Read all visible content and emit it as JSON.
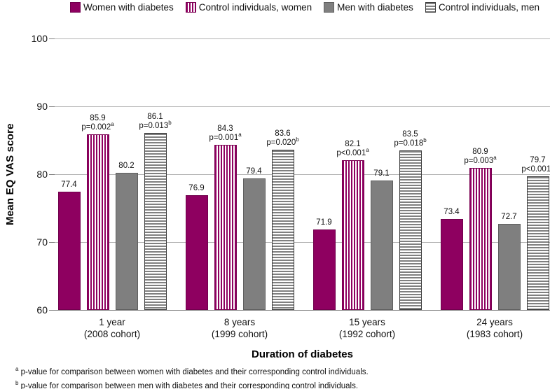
{
  "legend": {
    "items": [
      {
        "label": "Women with diabetes",
        "swatch": "solid-maroon",
        "swatch_name": "solid-maroon-swatch"
      },
      {
        "label": "Control individuals, women",
        "swatch": "vstripe-maroon",
        "swatch_name": "vertical-stripe-maroon-swatch"
      },
      {
        "label": "Men with diabetes",
        "swatch": "solid-gray",
        "swatch_name": "solid-gray-swatch"
      },
      {
        "label": "Control individuals, men",
        "swatch": "hstripe-gray",
        "swatch_name": "horizontal-stripe-gray-swatch"
      }
    ],
    "position": "top"
  },
  "colors": {
    "maroon": "#8E0060",
    "gray": "#7F7F7F",
    "gridline": "#b3b3b3",
    "axis": "#808080",
    "text": "#111111"
  },
  "chart_data": {
    "type": "bar",
    "title": "",
    "xlabel": "Duration of diabetes",
    "ylabel": "Mean EQ VAS score",
    "ylim": [
      60,
      100
    ],
    "yticks": [
      60,
      70,
      80,
      90,
      100
    ],
    "grid": true,
    "legend_position": "top",
    "categories": [
      {
        "line1": "1 year",
        "line2": "(2008 cohort)"
      },
      {
        "line1": "8 years",
        "line2": "(1999 cohort)"
      },
      {
        "line1": "15 years",
        "line2": "(1992 cohort)"
      },
      {
        "line1": "24 years",
        "line2": "(1983 cohort)"
      }
    ],
    "series": [
      {
        "name": "Women with diabetes",
        "style": "solid-maroon",
        "values": [
          77.4,
          76.9,
          71.9,
          73.4
        ]
      },
      {
        "name": "Control individuals, women",
        "style": "vstripe-maroon",
        "values": [
          85.9,
          84.3,
          82.1,
          80.9
        ],
        "pvalues": [
          "p=0.002",
          "p=0.001",
          "p<0.001",
          "p=0.003"
        ],
        "p_sup": "a"
      },
      {
        "name": "Men with diabetes",
        "style": "solid-gray",
        "values": [
          80.2,
          79.4,
          79.1,
          72.7
        ]
      },
      {
        "name": "Control individuals, men",
        "style": "hstripe-gray",
        "values": [
          86.1,
          83.6,
          83.5,
          79.7
        ],
        "pvalues": [
          "p=0.013",
          "p=0.020",
          "p=0.018",
          "p<0.001"
        ],
        "p_sup": "b"
      }
    ]
  },
  "footnotes": [
    {
      "sup": "a",
      "text": "p-value for comparison between women with diabetes and their corresponding control individuals."
    },
    {
      "sup": "b",
      "text": "p-value for comparison between men with diabetes and their corresponding control individuals."
    }
  ]
}
